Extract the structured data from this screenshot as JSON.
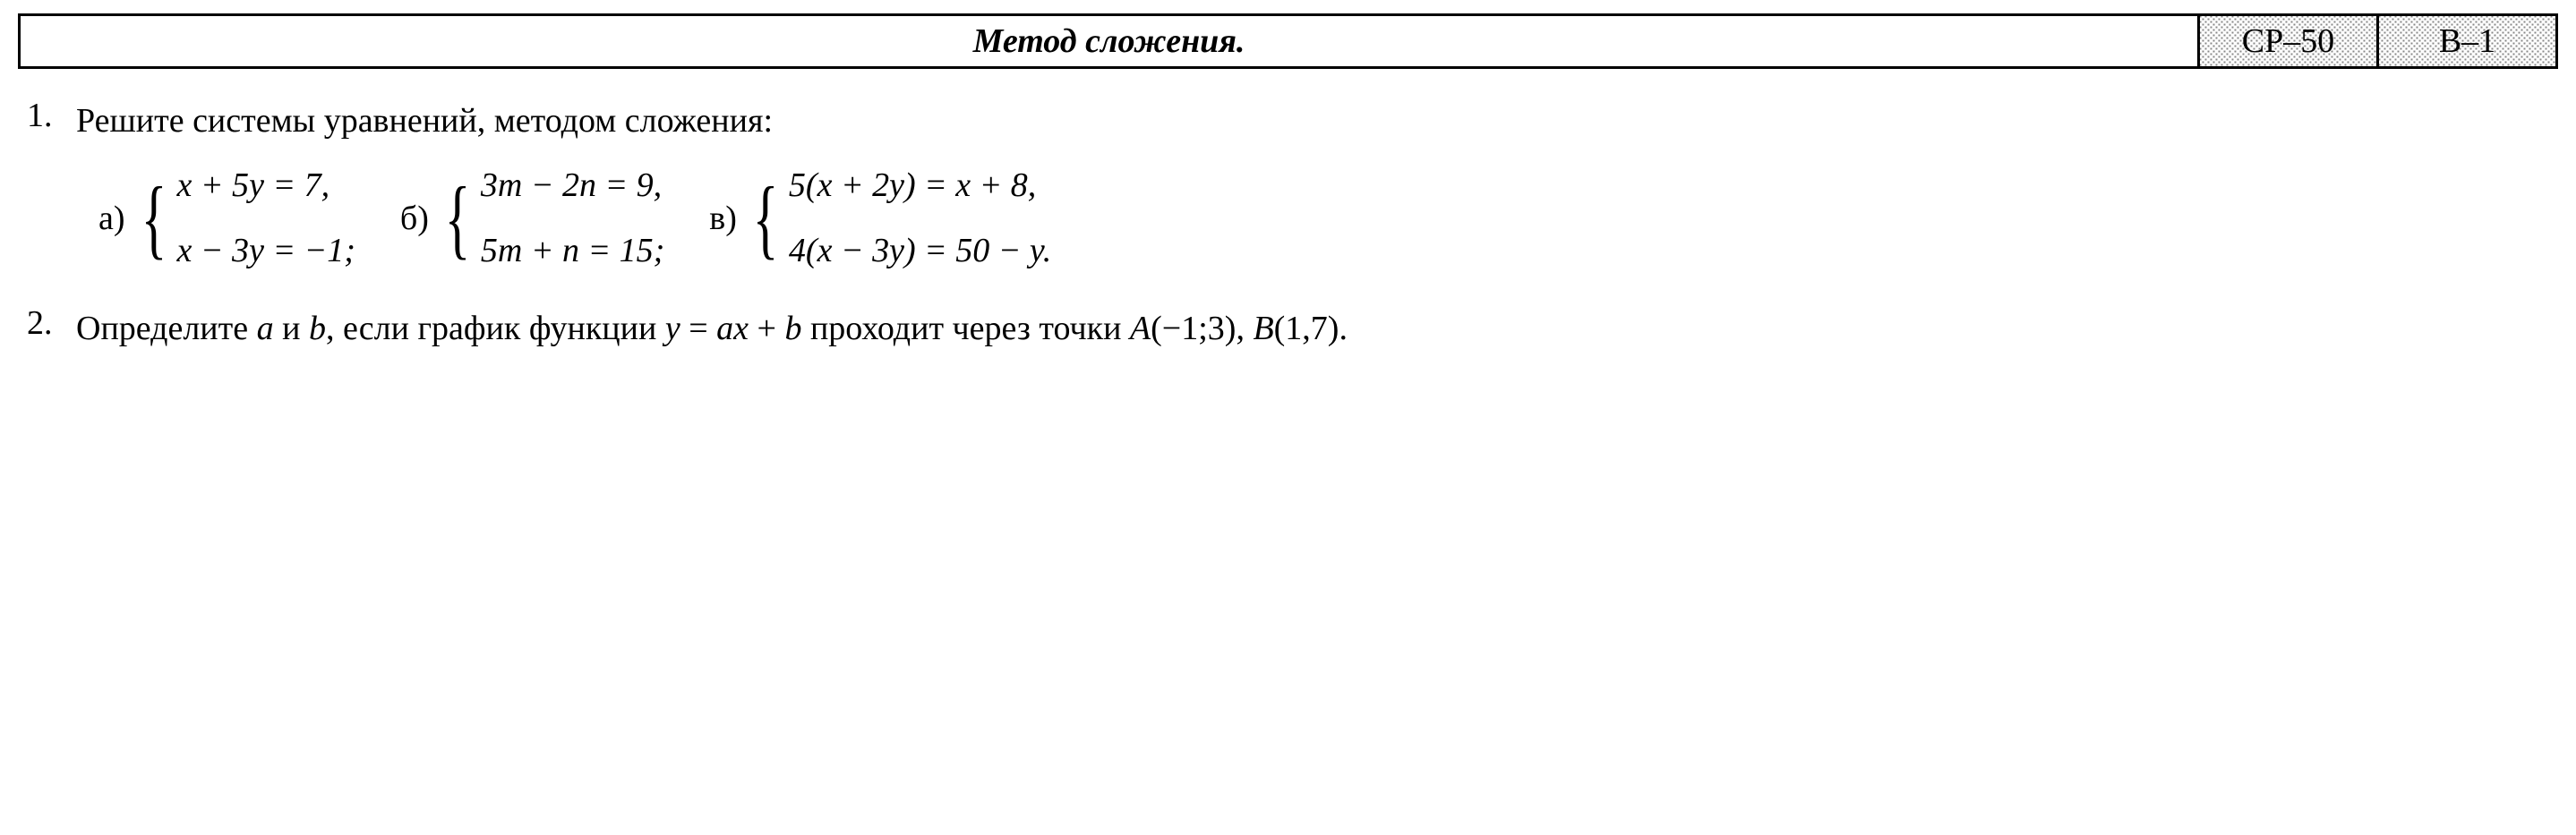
{
  "header": {
    "title": "Метод сложения.",
    "label1": "СР–50",
    "label2": "В–1",
    "title_fontsize": 38,
    "label_fontsize": 38,
    "border_color": "#000000",
    "border_width": 3,
    "label_bg_pattern": "stipple",
    "label_bg_dot_color": "#888888",
    "label_bg_base": "#ffffff"
  },
  "problems": [
    {
      "number": "1.",
      "prompt": "Решите системы уравнений, методом сложения:",
      "systems": [
        {
          "label": "а)",
          "eq1_html": "<span class='ital'>x</span> + 5<span class='ital'>y</span> = 7,",
          "eq2_html": "<span class='ital'>x</span> − 3<span class='ital'>y</span> = −1;"
        },
        {
          "label": "б)",
          "eq1_html": "3<span class='ital'>m</span> − 2<span class='ital'>n</span> = 9,",
          "eq2_html": "5<span class='ital'>m</span> + <span class='ital'>n</span> = 15;"
        },
        {
          "label": "в)",
          "eq1_html": "5(<span class='ital'>x</span> + 2<span class='ital'>y</span>) = <span class='ital'>x</span> + 8,",
          "eq2_html": "4(<span class='ital'>x</span> − 3<span class='ital'>y</span>) = 50 − <span class='ital'>y</span>."
        }
      ]
    },
    {
      "number": "2.",
      "prompt_html": "Определите <span class='ital'>a</span> и <span class='ital'>b</span>, если график функции <span class='ital'>y</span> = <span class='ital'>ax</span> + <span class='ital'>b</span> проходит через точки <span class='ital'>A</span>(−1;3), <span class='ital'>B</span>(1,7)."
    }
  ],
  "style": {
    "body_bg": "#ffffff",
    "text_color": "#000000",
    "font_family": "Times New Roman",
    "base_fontsize": 38,
    "brace_fontsize": 100
  }
}
